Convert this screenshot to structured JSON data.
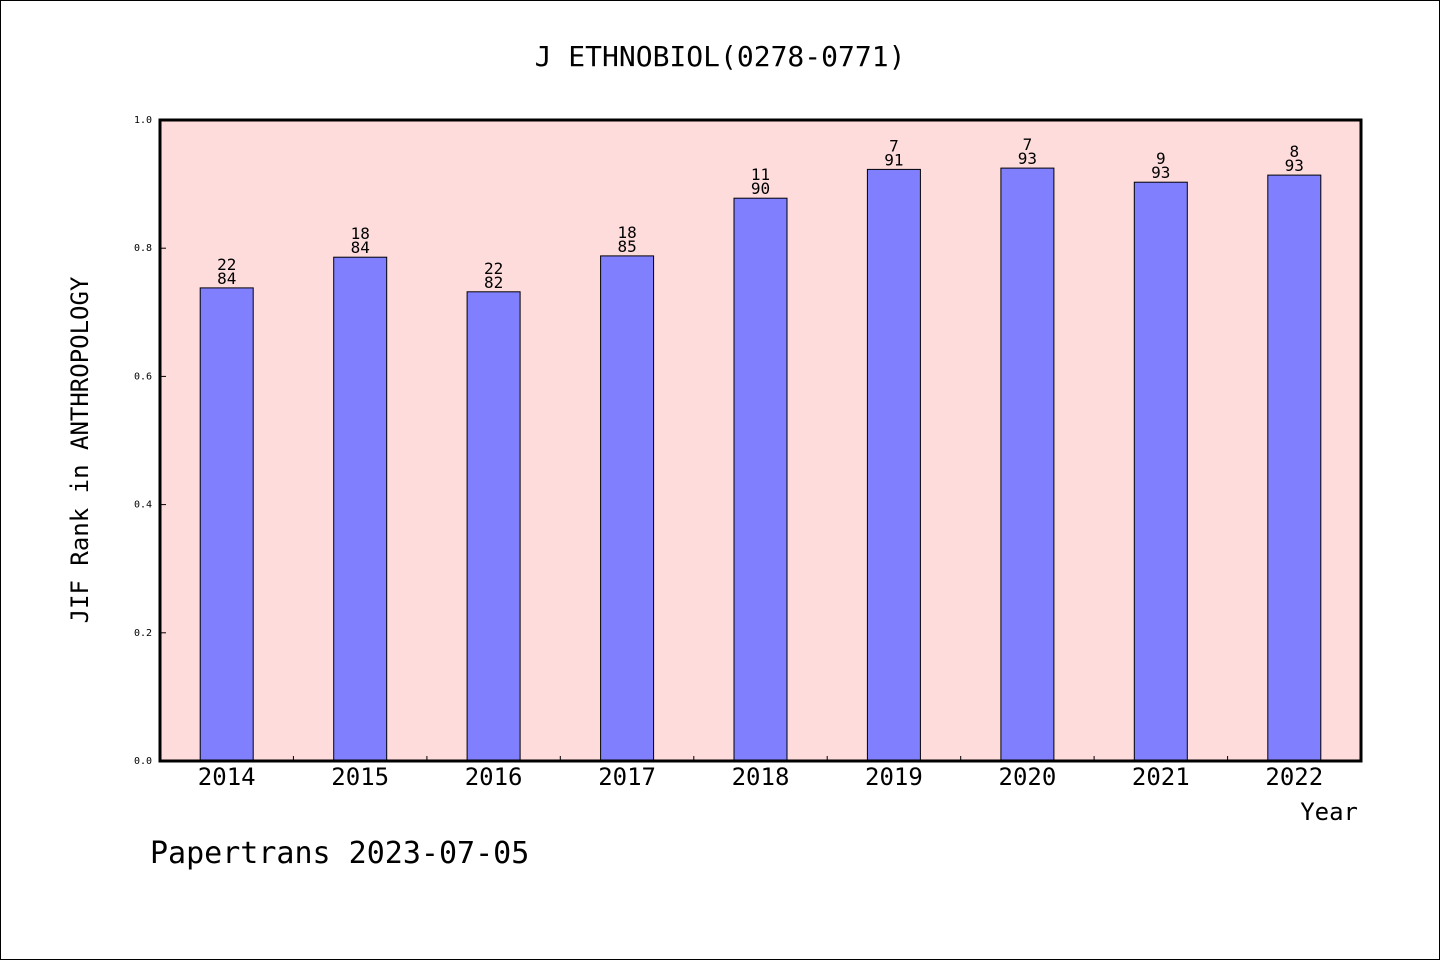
{
  "chart_data": {
    "type": "bar",
    "title": "J ETHNOBIOL(0278-0771)",
    "xlabel": "Year",
    "ylabel": "JIF Rank in ANTHROPOLOGY",
    "ylim": [
      0,
      1.0
    ],
    "yticks": [
      "0.0",
      "0.2",
      "0.4",
      "0.6",
      "0.8",
      "1.0"
    ],
    "categories": [
      "2014",
      "2015",
      "2016",
      "2017",
      "2018",
      "2019",
      "2020",
      "2021",
      "2022"
    ],
    "values": [
      0.738,
      0.786,
      0.732,
      0.788,
      0.878,
      0.923,
      0.925,
      0.903,
      0.914
    ],
    "labels_top": [
      "22",
      "18",
      "22",
      "18",
      "11",
      "7",
      "7",
      "9",
      "8"
    ],
    "labels_bottom": [
      "84",
      "84",
      "82",
      "85",
      "90",
      "91",
      "93",
      "93",
      "93"
    ],
    "grid": false,
    "colors": {
      "plot_background": "#ffdcdc",
      "bar": "#8080ff",
      "bar_edge": "#000000"
    }
  },
  "footer": {
    "credit": "Papertrans 2023-07-05"
  }
}
